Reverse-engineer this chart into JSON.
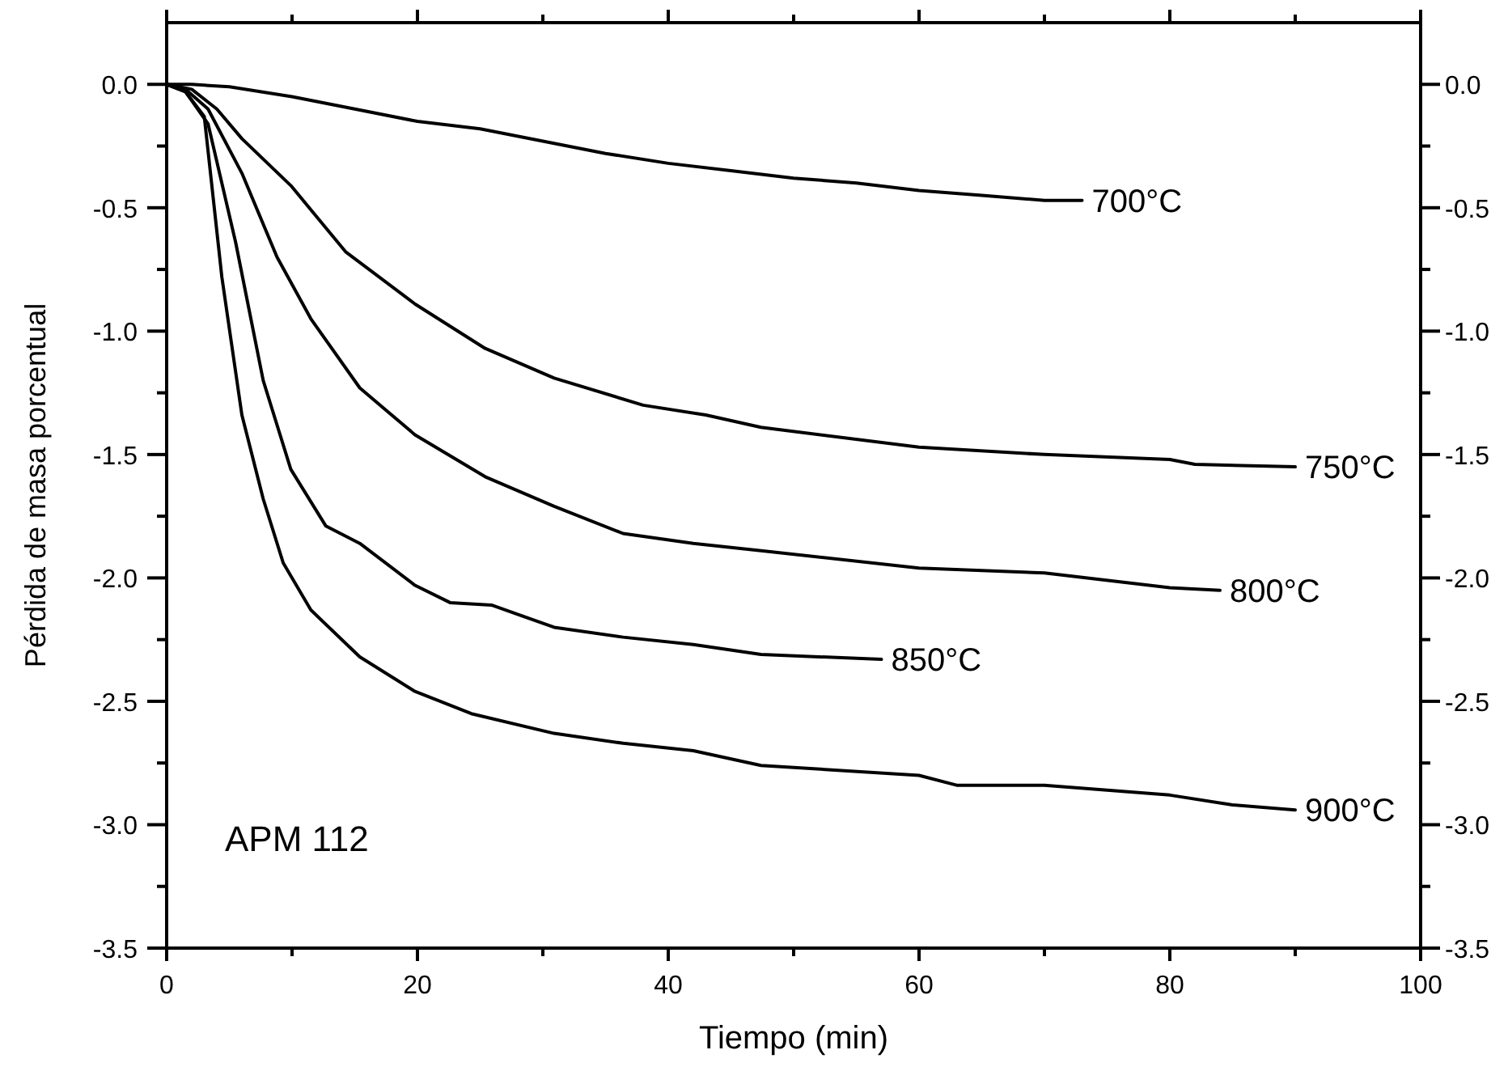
{
  "chart_data": {
    "type": "line",
    "xlabel": "Tiempo (min)",
    "ylabel": "Pérdida de masa porcentual",
    "xlim": [
      0,
      100
    ],
    "ylim": [
      -3.5,
      0.25
    ],
    "xticks": [
      0,
      {
        "value": 10,
        "label": null
      },
      20,
      {
        "value": 30,
        "label": null
      },
      40,
      {
        "value": 50,
        "label": null
      },
      60,
      {
        "value": 70,
        "label": null
      },
      80,
      {
        "value": 90,
        "label": null
      },
      100
    ],
    "yticks": [
      {
        "value": 0,
        "label": "0.0"
      },
      {
        "value": -0.25,
        "label": null
      },
      {
        "value": -0.5,
        "label": "-0.5"
      },
      {
        "value": -0.75,
        "label": null
      },
      {
        "value": -1,
        "label": "-1.0"
      },
      {
        "value": -1.25,
        "label": null
      },
      {
        "value": -1.5,
        "label": "-1.5"
      },
      {
        "value": -1.75,
        "label": null
      },
      {
        "value": -2,
        "label": "-2.0"
      },
      {
        "value": -2.25,
        "label": null
      },
      {
        "value": -2.5,
        "label": "-2.5"
      },
      {
        "value": -2.75,
        "label": null
      },
      {
        "value": -3,
        "label": "-3.0"
      },
      {
        "value": -3.25,
        "label": null
      },
      {
        "value": -3.5,
        "label": "-3.5"
      }
    ],
    "y2lim": [
      -3.5,
      0.25
    ],
    "y2ticks": [
      {
        "value": 0,
        "label": "0.0"
      },
      {
        "value": -0.25,
        "label": null
      },
      {
        "value": -0.5,
        "label": "-0.5"
      },
      {
        "value": -0.75,
        "label": null
      },
      {
        "value": -1,
        "label": "-1.0"
      },
      {
        "value": -1.25,
        "label": null
      },
      {
        "value": -1.5,
        "label": "-1.5"
      },
      {
        "value": -1.75,
        "label": null
      },
      {
        "value": -2,
        "label": "-2.0"
      },
      {
        "value": -2.25,
        "label": null
      },
      {
        "value": -2.5,
        "label": "-2.5"
      },
      {
        "value": -2.75,
        "label": null
      },
      {
        "value": -3,
        "label": "-3.0"
      },
      {
        "value": -3.25,
        "label": null
      },
      {
        "value": -3.5,
        "label": "-3.5"
      }
    ],
    "grid": false,
    "marker": "none",
    "line_style": "solid",
    "series": [
      {
        "name": "700°C",
        "color": "#000000",
        "x": [
          0,
          2,
          5,
          10,
          15,
          20,
          25,
          30,
          35,
          40,
          45,
          50,
          55,
          60,
          65,
          70,
          73
        ],
        "values": [
          0,
          0,
          -0.01,
          -0.05,
          -0.1,
          -0.15,
          -0.18,
          -0.23,
          -0.28,
          -0.32,
          -0.35,
          -0.38,
          -0.4,
          -0.43,
          -0.45,
          -0.47,
          -0.47
        ]
      },
      {
        "name": "750°C",
        "color": "#000000",
        "x": [
          0,
          2,
          4,
          6,
          9.9,
          14.3,
          19.8,
          25.4,
          30.9,
          38,
          43,
          47.4,
          60,
          70,
          80,
          82,
          90
        ],
        "values": [
          0,
          -0.02,
          -0.1,
          -0.22,
          -0.41,
          -0.68,
          -0.89,
          -1.07,
          -1.19,
          -1.3,
          -1.34,
          -1.39,
          -1.47,
          -1.5,
          -1.52,
          -1.54,
          -1.55
        ]
      },
      {
        "name": "800°C",
        "color": "#000000",
        "x": [
          0,
          1.5,
          3.3,
          6,
          8.8,
          11.5,
          15.4,
          19.8,
          25.4,
          30.9,
          36.4,
          42,
          47.4,
          60,
          70,
          80,
          84
        ],
        "values": [
          0,
          -0.02,
          -0.1,
          -0.36,
          -0.7,
          -0.95,
          -1.23,
          -1.42,
          -1.59,
          -1.71,
          -1.82,
          -1.86,
          -1.89,
          -1.96,
          -1.98,
          -2.04,
          -2.05
        ]
      },
      {
        "name": "850°C",
        "color": "#000000",
        "x": [
          0,
          1.5,
          3.3,
          5.5,
          7.7,
          9.9,
          12.7,
          15.4,
          19.8,
          22.6,
          25.9,
          30.9,
          36.4,
          42,
          47.4,
          57
        ],
        "values": [
          0,
          -0.03,
          -0.16,
          -0.64,
          -1.2,
          -1.56,
          -1.79,
          -1.86,
          -2.03,
          -2.1,
          -2.11,
          -2.2,
          -2.24,
          -2.27,
          -2.31,
          -2.33
        ]
      },
      {
        "name": "900°C",
        "color": "#000000",
        "x": [
          0,
          1.5,
          3,
          4.4,
          6,
          7.7,
          9.3,
          11.5,
          15.4,
          19.8,
          24.3,
          30.9,
          36.4,
          42,
          47.4,
          60,
          63,
          70,
          80,
          85,
          90
        ],
        "values": [
          0,
          -0.03,
          -0.13,
          -0.78,
          -1.34,
          -1.68,
          -1.94,
          -2.13,
          -2.32,
          -2.46,
          -2.55,
          -2.63,
          -2.67,
          -2.7,
          -2.76,
          -2.8,
          -2.84,
          -2.84,
          -2.88,
          -2.92,
          -2.94
        ]
      }
    ],
    "annotations": [
      "APM 112"
    ]
  }
}
